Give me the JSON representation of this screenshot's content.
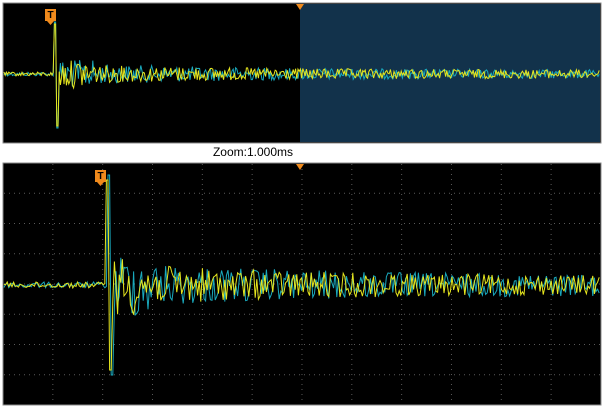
{
  "overview": {
    "trigger_label": "T"
  },
  "zoom_label": "Zoom:1.000ms",
  "zoom_view": {
    "trigger_label": "T"
  }
}
